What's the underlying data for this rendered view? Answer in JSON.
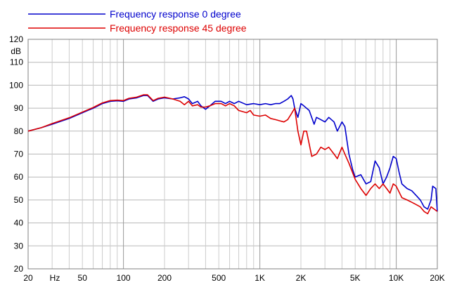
{
  "chart_data": {
    "type": "line",
    "title": "",
    "xlabel": "Hz",
    "ylabel": "dB",
    "x_scale": "log",
    "xlim": [
      20,
      20000
    ],
    "ylim": [
      20,
      120
    ],
    "grid": true,
    "legend_position": "top-left",
    "x_ticks": [
      {
        "value": 20,
        "label": "20"
      },
      {
        "value": 50,
        "label": "50"
      },
      {
        "value": 100,
        "label": "100"
      },
      {
        "value": 200,
        "label": "200"
      },
      {
        "value": 500,
        "label": "500"
      },
      {
        "value": 1000,
        "label": "1K"
      },
      {
        "value": 2000,
        "label": "2K"
      },
      {
        "value": 5000,
        "label": "5K"
      },
      {
        "value": 10000,
        "label": "10K"
      },
      {
        "value": 20000,
        "label": "20K"
      }
    ],
    "y_ticks": [
      20,
      30,
      40,
      50,
      60,
      70,
      80,
      90,
      100,
      110,
      120
    ],
    "series": [
      {
        "name": "Frequency response 0 degree",
        "color": "#0000cc",
        "points": [
          [
            20,
            80
          ],
          [
            25,
            81.5
          ],
          [
            30,
            83
          ],
          [
            40,
            85.5
          ],
          [
            50,
            88
          ],
          [
            60,
            90
          ],
          [
            70,
            92
          ],
          [
            80,
            93
          ],
          [
            90,
            93.2
          ],
          [
            100,
            93
          ],
          [
            110,
            94
          ],
          [
            125,
            94.5
          ],
          [
            140,
            95.5
          ],
          [
            150,
            95.5
          ],
          [
            165,
            93
          ],
          [
            180,
            94
          ],
          [
            200,
            94.5
          ],
          [
            230,
            94
          ],
          [
            260,
            94.5
          ],
          [
            280,
            95
          ],
          [
            300,
            94
          ],
          [
            320,
            92
          ],
          [
            350,
            93
          ],
          [
            370,
            91
          ],
          [
            400,
            89.5
          ],
          [
            430,
            91
          ],
          [
            470,
            93
          ],
          [
            520,
            93
          ],
          [
            560,
            92
          ],
          [
            600,
            93
          ],
          [
            650,
            92
          ],
          [
            700,
            93
          ],
          [
            800,
            91.5
          ],
          [
            900,
            92
          ],
          [
            1000,
            91.5
          ],
          [
            1100,
            92
          ],
          [
            1200,
            91.5
          ],
          [
            1300,
            92
          ],
          [
            1400,
            92
          ],
          [
            1500,
            93
          ],
          [
            1600,
            94
          ],
          [
            1700,
            95.5
          ],
          [
            1750,
            94
          ],
          [
            1800,
            90
          ],
          [
            1900,
            86
          ],
          [
            2000,
            92
          ],
          [
            2100,
            91
          ],
          [
            2300,
            89
          ],
          [
            2500,
            83
          ],
          [
            2600,
            86
          ],
          [
            2800,
            85
          ],
          [
            3000,
            84
          ],
          [
            3200,
            86
          ],
          [
            3500,
            84
          ],
          [
            3700,
            80
          ],
          [
            4000,
            84
          ],
          [
            4200,
            82
          ],
          [
            4500,
            70
          ],
          [
            4800,
            63
          ],
          [
            5000,
            60
          ],
          [
            5500,
            61
          ],
          [
            6000,
            57
          ],
          [
            6500,
            58
          ],
          [
            7000,
            67
          ],
          [
            7500,
            64
          ],
          [
            8000,
            57
          ],
          [
            8500,
            60
          ],
          [
            9000,
            64
          ],
          [
            9500,
            69
          ],
          [
            10000,
            68
          ],
          [
            10500,
            62
          ],
          [
            11000,
            57
          ],
          [
            12000,
            55
          ],
          [
            13000,
            54
          ],
          [
            14000,
            52
          ],
          [
            15000,
            50
          ],
          [
            16000,
            47
          ],
          [
            17000,
            46
          ],
          [
            18000,
            50
          ],
          [
            18500,
            56
          ],
          [
            19500,
            55
          ],
          [
            20000,
            45
          ]
        ]
      },
      {
        "name": "Frequency response 45 degree",
        "color": "#dd0000",
        "points": [
          [
            20,
            80
          ],
          [
            25,
            81.5
          ],
          [
            30,
            83.3
          ],
          [
            40,
            85.8
          ],
          [
            50,
            88.3
          ],
          [
            60,
            90.3
          ],
          [
            70,
            92.3
          ],
          [
            80,
            93.3
          ],
          [
            90,
            93.5
          ],
          [
            100,
            93.3
          ],
          [
            110,
            94.3
          ],
          [
            125,
            94.8
          ],
          [
            140,
            95.8
          ],
          [
            150,
            95.8
          ],
          [
            165,
            93.3
          ],
          [
            180,
            94.3
          ],
          [
            200,
            94.8
          ],
          [
            230,
            94
          ],
          [
            260,
            93
          ],
          [
            280,
            91.5
          ],
          [
            300,
            93
          ],
          [
            320,
            91
          ],
          [
            350,
            91.5
          ],
          [
            370,
            90.5
          ],
          [
            400,
            90.5
          ],
          [
            430,
            91
          ],
          [
            470,
            92
          ],
          [
            520,
            92
          ],
          [
            560,
            91
          ],
          [
            600,
            92
          ],
          [
            650,
            91
          ],
          [
            700,
            89
          ],
          [
            800,
            88
          ],
          [
            850,
            89
          ],
          [
            900,
            87
          ],
          [
            1000,
            86.5
          ],
          [
            1100,
            87
          ],
          [
            1200,
            85.5
          ],
          [
            1300,
            85
          ],
          [
            1400,
            84.5
          ],
          [
            1500,
            84
          ],
          [
            1600,
            85
          ],
          [
            1700,
            87.5
          ],
          [
            1800,
            90
          ],
          [
            1900,
            80
          ],
          [
            2000,
            74
          ],
          [
            2100,
            80
          ],
          [
            2200,
            80
          ],
          [
            2400,
            69
          ],
          [
            2600,
            70
          ],
          [
            2800,
            73
          ],
          [
            3000,
            72
          ],
          [
            3200,
            73
          ],
          [
            3500,
            70
          ],
          [
            3700,
            68
          ],
          [
            4000,
            73
          ],
          [
            4200,
            70
          ],
          [
            4500,
            66
          ],
          [
            5000,
            59
          ],
          [
            5500,
            55
          ],
          [
            6000,
            52
          ],
          [
            6500,
            55
          ],
          [
            7000,
            57
          ],
          [
            7500,
            55
          ],
          [
            8000,
            57
          ],
          [
            8500,
            55
          ],
          [
            9000,
            53
          ],
          [
            9500,
            57
          ],
          [
            10000,
            56
          ],
          [
            11000,
            51
          ],
          [
            12000,
            50
          ],
          [
            13000,
            49
          ],
          [
            14000,
            48
          ],
          [
            15000,
            47
          ],
          [
            16000,
            45
          ],
          [
            17000,
            44
          ],
          [
            18000,
            47
          ],
          [
            19000,
            46
          ],
          [
            20000,
            45
          ]
        ]
      }
    ]
  }
}
